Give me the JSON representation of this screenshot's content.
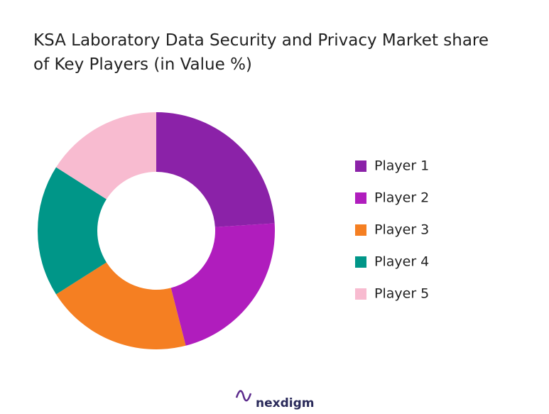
{
  "chart_data": {
    "type": "pie",
    "title": "KSA Laboratory Data Security and Privacy Market share of Key Players (in Value %)",
    "categories": [
      "Player 1",
      "Player 2",
      "Player 3",
      "Player 4",
      "Player 5"
    ],
    "values": [
      24,
      22,
      20,
      18,
      16
    ],
    "colors": [
      "#8b22a8",
      "#b01dbd",
      "#f57f22",
      "#009688",
      "#f8bbd0"
    ],
    "legend": "right"
  },
  "footer": "nexdigm"
}
